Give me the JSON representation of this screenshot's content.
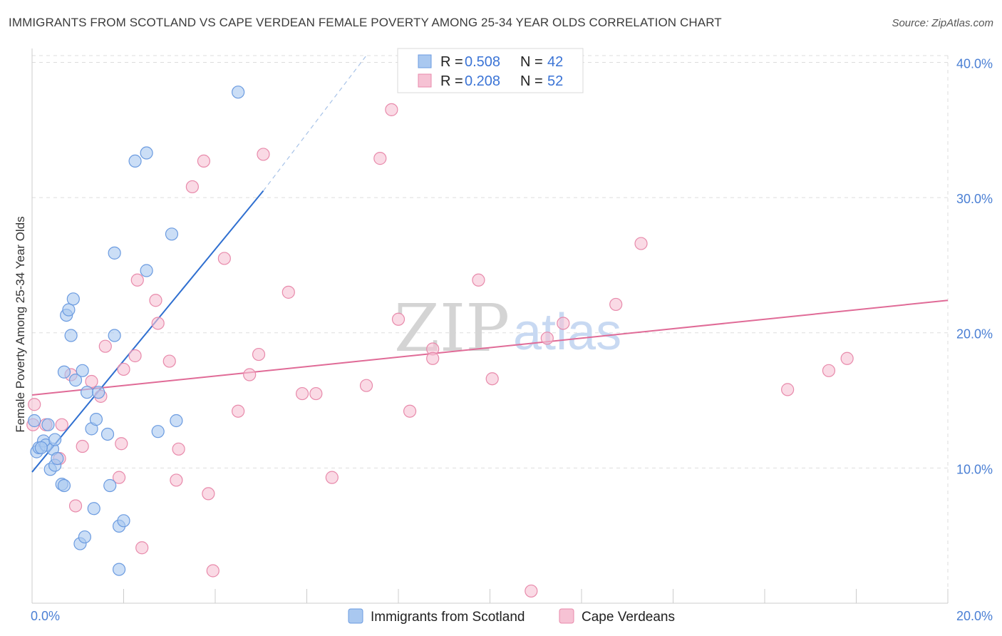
{
  "title": "IMMIGRANTS FROM SCOTLAND VS CAPE VERDEAN FEMALE POVERTY AMONG 25-34 YEAR OLDS CORRELATION CHART",
  "source": "Source: ZipAtlas.com",
  "watermark": {
    "zip": "ZIP",
    "atlas": "atlas"
  },
  "colors": {
    "blue_fill": "#a9c8f0",
    "blue_stroke": "#6b9be0",
    "blue_line": "#2f6fd0",
    "pink_fill": "#f6c2d4",
    "pink_stroke": "#e88aab",
    "pink_line": "#e06b97",
    "grid": "#dddddd",
    "tick_label": "#4a7fd4"
  },
  "legend": {
    "rows": [
      {
        "r_label": "R = ",
        "r_value": "0.508",
        "n_label": "N = ",
        "n_value": "42"
      },
      {
        "r_label": "R = ",
        "r_value": "0.208",
        "n_label": "N = ",
        "n_value": "52"
      }
    ]
  },
  "chart_data": {
    "type": "scatter",
    "title": "IMMIGRANTS FROM SCOTLAND VS CAPE VERDEAN FEMALE POVERTY AMONG 25-34 YEAR OLDS CORRELATION CHART",
    "xlabel": "",
    "ylabel": "Female Poverty Among 25-34 Year Olds",
    "xlim": [
      0,
      20
    ],
    "ylim": [
      0,
      40.5
    ],
    "x_tick_labels": [
      "0.0%",
      "20.0%"
    ],
    "y_ticks": [
      10,
      20,
      30,
      40
    ],
    "y_tick_labels": [
      "10.0%",
      "20.0%",
      "30.0%",
      "40.0%"
    ],
    "grid": true,
    "legend_position": "top-center",
    "series": [
      {
        "name": "Immigrants from Scotland",
        "color": "#a9c8f0",
        "points": [
          [
            0.05,
            13.5
          ],
          [
            0.1,
            11.2
          ],
          [
            0.15,
            11.5
          ],
          [
            0.25,
            12.0
          ],
          [
            0.3,
            11.7
          ],
          [
            0.35,
            13.2
          ],
          [
            0.4,
            9.9
          ],
          [
            0.45,
            11.4
          ],
          [
            0.5,
            10.2
          ],
          [
            0.5,
            12.1
          ],
          [
            0.55,
            10.7
          ],
          [
            0.65,
            8.8
          ],
          [
            0.7,
            8.7
          ],
          [
            0.7,
            17.1
          ],
          [
            0.75,
            21.3
          ],
          [
            0.8,
            21.7
          ],
          [
            0.85,
            19.8
          ],
          [
            0.9,
            22.5
          ],
          [
            0.95,
            16.5
          ],
          [
            1.05,
            4.4
          ],
          [
            1.1,
            17.2
          ],
          [
            1.15,
            4.9
          ],
          [
            1.2,
            15.6
          ],
          [
            1.3,
            12.9
          ],
          [
            1.35,
            7.0
          ],
          [
            1.4,
            13.6
          ],
          [
            1.45,
            15.6
          ],
          [
            1.65,
            12.5
          ],
          [
            1.7,
            8.7
          ],
          [
            1.8,
            19.8
          ],
          [
            1.8,
            25.9
          ],
          [
            1.9,
            2.5
          ],
          [
            1.9,
            5.7
          ],
          [
            2.0,
            6.1
          ],
          [
            2.25,
            32.7
          ],
          [
            2.5,
            33.3
          ],
          [
            2.5,
            24.6
          ],
          [
            2.75,
            12.7
          ],
          [
            3.05,
            27.3
          ],
          [
            3.15,
            13.5
          ],
          [
            4.5,
            37.8
          ],
          [
            0.2,
            11.5
          ]
        ],
        "trend": {
          "x0": 0.0,
          "y0": 9.7,
          "x1": 5.05,
          "y1": 30.5,
          "dashed_to_x": 7.3,
          "dashed_to_y": 40.5
        }
      },
      {
        "name": "Cape Verdeans",
        "color": "#f6c2d4",
        "points": [
          [
            0.05,
            14.7
          ],
          [
            0.3,
            13.2
          ],
          [
            0.6,
            10.7
          ],
          [
            0.65,
            13.2
          ],
          [
            0.85,
            16.9
          ],
          [
            0.95,
            7.2
          ],
          [
            1.1,
            11.6
          ],
          [
            1.3,
            16.4
          ],
          [
            1.5,
            15.3
          ],
          [
            1.6,
            19.0
          ],
          [
            1.9,
            9.3
          ],
          [
            1.95,
            11.8
          ],
          [
            2.0,
            17.3
          ],
          [
            2.25,
            18.3
          ],
          [
            2.3,
            23.9
          ],
          [
            2.4,
            4.1
          ],
          [
            2.7,
            22.4
          ],
          [
            2.75,
            20.7
          ],
          [
            3.0,
            17.9
          ],
          [
            3.15,
            9.1
          ],
          [
            3.2,
            11.4
          ],
          [
            3.5,
            30.8
          ],
          [
            3.75,
            32.7
          ],
          [
            3.85,
            8.1
          ],
          [
            3.95,
            2.4
          ],
          [
            4.2,
            25.5
          ],
          [
            4.5,
            14.2
          ],
          [
            4.75,
            16.9
          ],
          [
            4.95,
            18.4
          ],
          [
            5.05,
            33.2
          ],
          [
            5.6,
            23.0
          ],
          [
            5.9,
            15.5
          ],
          [
            6.2,
            15.5
          ],
          [
            6.55,
            9.3
          ],
          [
            7.3,
            16.1
          ],
          [
            7.6,
            32.9
          ],
          [
            7.85,
            36.5
          ],
          [
            8.0,
            21.0
          ],
          [
            8.25,
            14.2
          ],
          [
            8.75,
            18.8
          ],
          [
            8.75,
            18.1
          ],
          [
            9.75,
            23.9
          ],
          [
            10.05,
            16.6
          ],
          [
            10.9,
            0.9
          ],
          [
            11.25,
            19.6
          ],
          [
            11.6,
            20.7
          ],
          [
            12.75,
            22.1
          ],
          [
            13.3,
            26.6
          ],
          [
            16.5,
            15.8
          ],
          [
            17.4,
            17.2
          ],
          [
            17.8,
            18.1
          ],
          [
            0.02,
            13.2
          ]
        ],
        "trend": {
          "x0": 0.0,
          "y0": 15.4,
          "x1": 20.0,
          "y1": 22.4
        }
      }
    ]
  }
}
